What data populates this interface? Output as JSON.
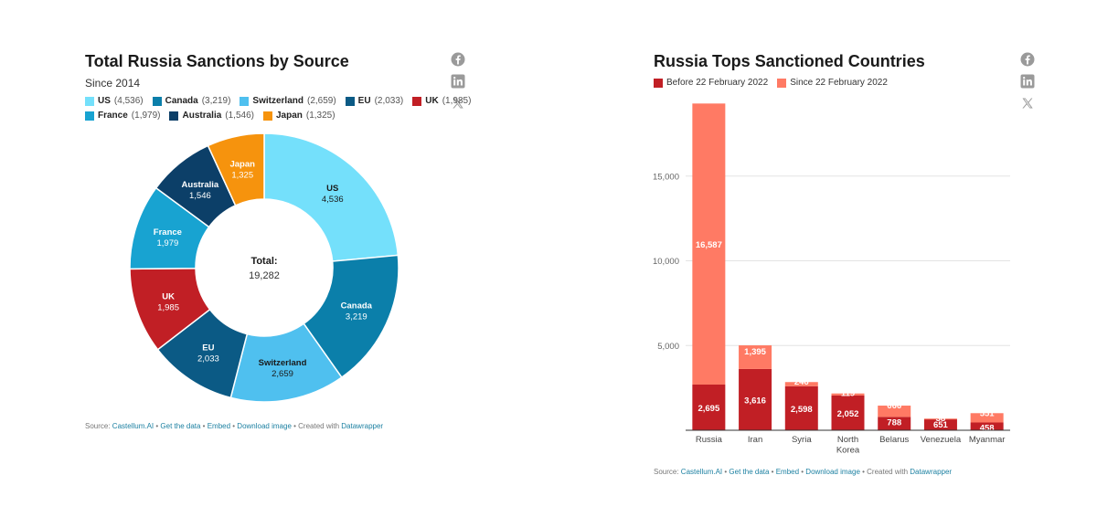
{
  "donut": {
    "title": "Total Russia Sanctions by Source",
    "subtitle": "Since 2014",
    "center_label": "Total:",
    "center_value": "19,282",
    "source_prefix": "Source: ",
    "source_name": "Castellum.AI",
    "links": [
      "Get the data",
      "Embed",
      "Download image"
    ],
    "created_with": "Created with ",
    "tool": "Datawrapper"
  },
  "bars": {
    "title": "Russia Tops Sanctioned Countries",
    "source_prefix": "Source: ",
    "source_name": "Castellum.AI",
    "links": [
      "Get the data",
      "Embed",
      "Download image"
    ],
    "created_with": "Created with ",
    "tool": "Datawrapper"
  },
  "icons": [
    "facebook-icon",
    "linkedin-icon",
    "x-icon"
  ],
  "chart_data": [
    {
      "type": "pie",
      "title": "Total Russia Sanctions by Source",
      "subtitle": "Since 2014",
      "legend_position": "top",
      "slices": [
        {
          "label": "US",
          "value": 4536,
          "display": "4,536",
          "color": "#74e0fb"
        },
        {
          "label": "Canada",
          "value": 3219,
          "display": "3,219",
          "color": "#0b7faa"
        },
        {
          "label": "Switzerland",
          "value": 2659,
          "display": "2,659",
          "color": "#4fc0ef"
        },
        {
          "label": "EU",
          "value": 2033,
          "display": "2,033",
          "color": "#0b5a85"
        },
        {
          "label": "UK",
          "value": 1985,
          "display": "1,985",
          "color": "#c11f25"
        },
        {
          "label": "France",
          "value": 1979,
          "display": "1,979",
          "color": "#18a3d1"
        },
        {
          "label": "Australia",
          "value": 1546,
          "display": "1,546",
          "color": "#0c3f68"
        },
        {
          "label": "Japan",
          "value": 1325,
          "display": "1,325",
          "color": "#f6930d"
        }
      ],
      "total_label": "Total:",
      "total": "19,282"
    },
    {
      "type": "bar",
      "stacked": true,
      "title": "Russia Tops Sanctioned Countries",
      "legend_position": "top-left",
      "categories": [
        "Russia",
        "Iran",
        "Syria",
        "North Korea",
        "Belarus",
        "Venezuela",
        "Myanmar"
      ],
      "series": [
        {
          "name": "Before 22 February 2022",
          "color": "#c11f25",
          "values": [
            2695,
            3616,
            2598,
            2052,
            788,
            651,
            458
          ]
        },
        {
          "name": "Since 22 February 2022",
          "color": "#ff7a64",
          "values": [
            16587,
            1395,
            246,
            119,
            666,
            38,
            551
          ]
        }
      ],
      "y_ticks": [
        "5,000",
        "10,000",
        "15,000"
      ],
      "y_tick_values": [
        5000,
        10000,
        15000
      ],
      "ylim": [
        0,
        20000
      ],
      "grid": true
    }
  ]
}
